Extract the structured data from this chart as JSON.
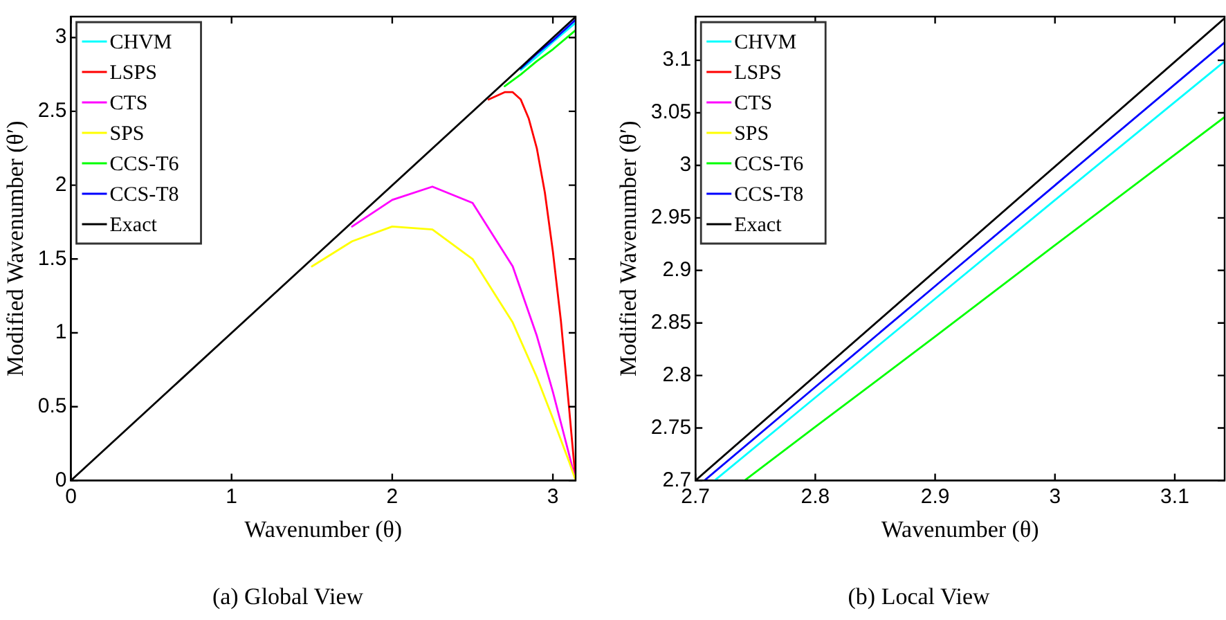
{
  "chart_data": [
    {
      "type": "line",
      "title": "(a) Global View",
      "xlabel": "Wavenumber (θ)",
      "ylabel": "Modified Wavenumber (θ′)",
      "xlim": [
        0,
        3.1416
      ],
      "ylim": [
        0,
        3.1416
      ],
      "xticks": [
        0,
        1,
        2,
        3
      ],
      "yticks": [
        0,
        0.5,
        1,
        1.5,
        2,
        2.5,
        3
      ],
      "legend": "top left",
      "marker": "none",
      "line_style": "solid",
      "series": [
        {
          "name": "CHVM",
          "color": "#00ffff",
          "x": [
            2.8,
            2.9,
            3.0,
            3.1416
          ],
          "values": [
            2.78,
            2.87,
            2.97,
            3.1
          ]
        },
        {
          "name": "LSPS",
          "color": "#ff0000",
          "x": [
            2.6,
            2.7,
            2.75,
            2.8,
            2.85,
            2.9,
            2.95,
            3.0,
            3.05,
            3.1,
            3.1416
          ],
          "values": [
            2.58,
            2.63,
            2.63,
            2.58,
            2.45,
            2.25,
            1.95,
            1.55,
            1.08,
            0.5,
            0
          ]
        },
        {
          "name": "CTS",
          "color": "#ff00ff",
          "x": [
            1.75,
            2,
            2.25,
            2.5,
            2.75,
            2.9,
            3.0,
            3.1,
            3.1416
          ],
          "values": [
            1.72,
            1.9,
            1.99,
            1.88,
            1.45,
            0.98,
            0.6,
            0.18,
            0
          ]
        },
        {
          "name": "SPS",
          "color": "#ffff00",
          "x": [
            1.5,
            1.75,
            2,
            2.25,
            2.5,
            2.75,
            2.9,
            3.0,
            3.1,
            3.1416
          ],
          "values": [
            1.45,
            1.62,
            1.72,
            1.7,
            1.5,
            1.07,
            0.7,
            0.42,
            0.13,
            0
          ]
        },
        {
          "name": "CCS-T6",
          "color": "#00ff00",
          "x": [
            2.7,
            2.8,
            2.9,
            3.0,
            3.1416
          ],
          "values": [
            2.67,
            2.75,
            2.84,
            2.92,
            3.05
          ]
        },
        {
          "name": "CCS-T8",
          "color": "#0000ff",
          "x": [
            2.8,
            2.9,
            3.0,
            3.1416
          ],
          "values": [
            2.79,
            2.89,
            2.98,
            3.12
          ]
        },
        {
          "name": "Exact",
          "color": "#000000",
          "x": [
            0,
            3.1416
          ],
          "values": [
            0,
            3.14
          ]
        }
      ]
    },
    {
      "type": "line",
      "title": "(b) Local View",
      "xlabel": "Wavenumber (θ)",
      "ylabel": "Modified Wavenumber (θ′)",
      "xlim": [
        2.7,
        3.1416
      ],
      "ylim": [
        2.7,
        3.1416
      ],
      "xticks": [
        2.7,
        2.8,
        2.9,
        3,
        3.1
      ],
      "yticks": [
        2.7,
        2.75,
        2.8,
        2.85,
        2.9,
        2.95,
        3,
        3.05,
        3.1
      ],
      "legend": "top left",
      "marker": "none",
      "line_style": "solid",
      "series": [
        {
          "name": "CHVM",
          "color": "#00ffff",
          "x": [
            2.716,
            2.8,
            2.9,
            3.0,
            3.1416
          ],
          "values": [
            2.7,
            2.779,
            2.873,
            2.967,
            3.099
          ]
        },
        {
          "name": "LSPS",
          "color": "#ff0000"
        },
        {
          "name": "CTS",
          "color": "#ff00ff"
        },
        {
          "name": "SPS",
          "color": "#ffff00"
        },
        {
          "name": "CCS-T6",
          "color": "#00ff00",
          "x": [
            2.741,
            2.8,
            2.9,
            3.0,
            3.1416
          ],
          "values": [
            2.7,
            2.751,
            2.837,
            2.924,
            3.046
          ]
        },
        {
          "name": "CCS-T8",
          "color": "#0000ff",
          "x": [
            2.7075,
            2.8,
            2.9,
            3.0,
            3.1416
          ],
          "values": [
            2.7,
            2.789,
            2.885,
            2.981,
            3.117
          ]
        },
        {
          "name": "Exact",
          "color": "#000000",
          "x": [
            2.7,
            3.1416
          ],
          "values": [
            2.7,
            3.14
          ]
        }
      ]
    }
  ]
}
